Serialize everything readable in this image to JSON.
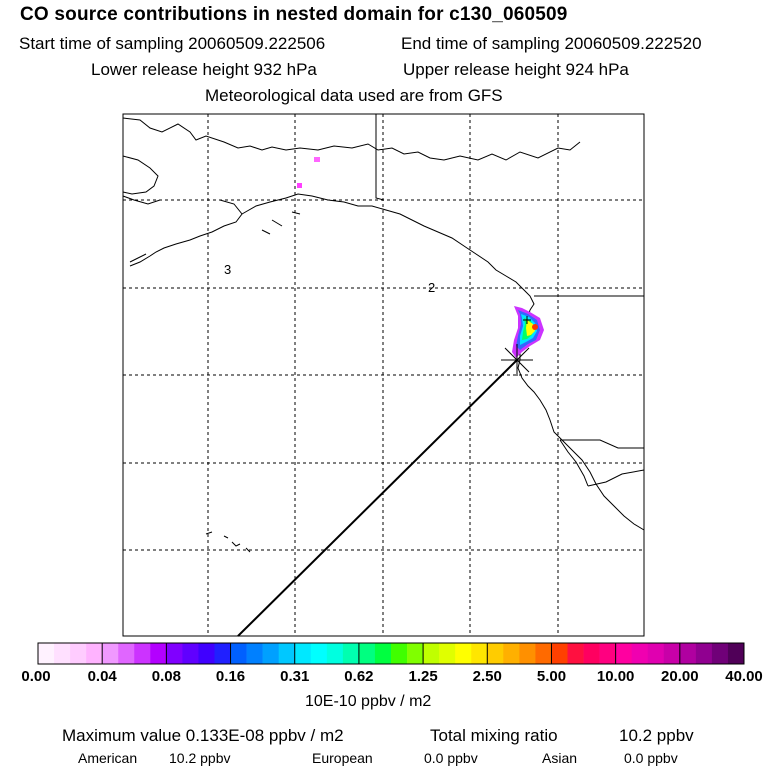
{
  "header": {
    "title": "CO  source contributions in nested domain for c130_060509",
    "start_sampling": "Start time of sampling 20060509.222506",
    "end_sampling": "End time of sampling 20060509.222520",
    "lower_release": "Lower release height  932 hPa",
    "upper_release": "Upper release height  924 hPa",
    "met_data": "Meteorological data used are from GFS"
  },
  "map": {
    "region_labels": [
      "3",
      "2"
    ],
    "plume_colors": [
      "#ff40ff",
      "#cc33ff",
      "#3366ff",
      "#00e5ff",
      "#00ff66",
      "#ffff00",
      "#ff3300"
    ]
  },
  "colorbar": {
    "tick_labels": [
      "0.00",
      "0.04",
      "0.08",
      "0.16",
      "0.31",
      "0.62",
      "1.25",
      "2.50",
      "5.00",
      "10.00",
      "20.00",
      "40.00"
    ],
    "units": "10E-10 ppbv / m2",
    "colors": [
      "#fff2ff",
      "#ffe0ff",
      "#ffccff",
      "#ffb3ff",
      "#f099ff",
      "#e066ff",
      "#cc33ff",
      "#b300ff",
      "#8000ff",
      "#6000ff",
      "#4000ff",
      "#2020ff",
      "#0060ff",
      "#0080ff",
      "#00a0ff",
      "#00c8ff",
      "#00e8ff",
      "#00ffff",
      "#00ffe0",
      "#00ffb0",
      "#00ff80",
      "#00ff40",
      "#40ff00",
      "#80ff00",
      "#c0ff00",
      "#e0ff00",
      "#ffff00",
      "#ffe600",
      "#ffcc00",
      "#ffb000",
      "#ff9000",
      "#ff6a00",
      "#ff4000",
      "#ff1040",
      "#ff0060",
      "#ff0080",
      "#ff00a0",
      "#f000b0",
      "#e000b0",
      "#c800a8",
      "#b000a0",
      "#900090",
      "#700078",
      "#500058"
    ]
  },
  "footer": {
    "max_value": "Maximum value  0.133E-08 ppbv / m2",
    "total_label": "Total mixing ratio",
    "total_value": "10.2 ppbv",
    "sources": [
      {
        "name": "American",
        "value": "10.2 ppbv"
      },
      {
        "name": "European",
        "value": "0.0 ppbv"
      },
      {
        "name": "Asian",
        "value": "0.0 ppbv"
      }
    ]
  }
}
